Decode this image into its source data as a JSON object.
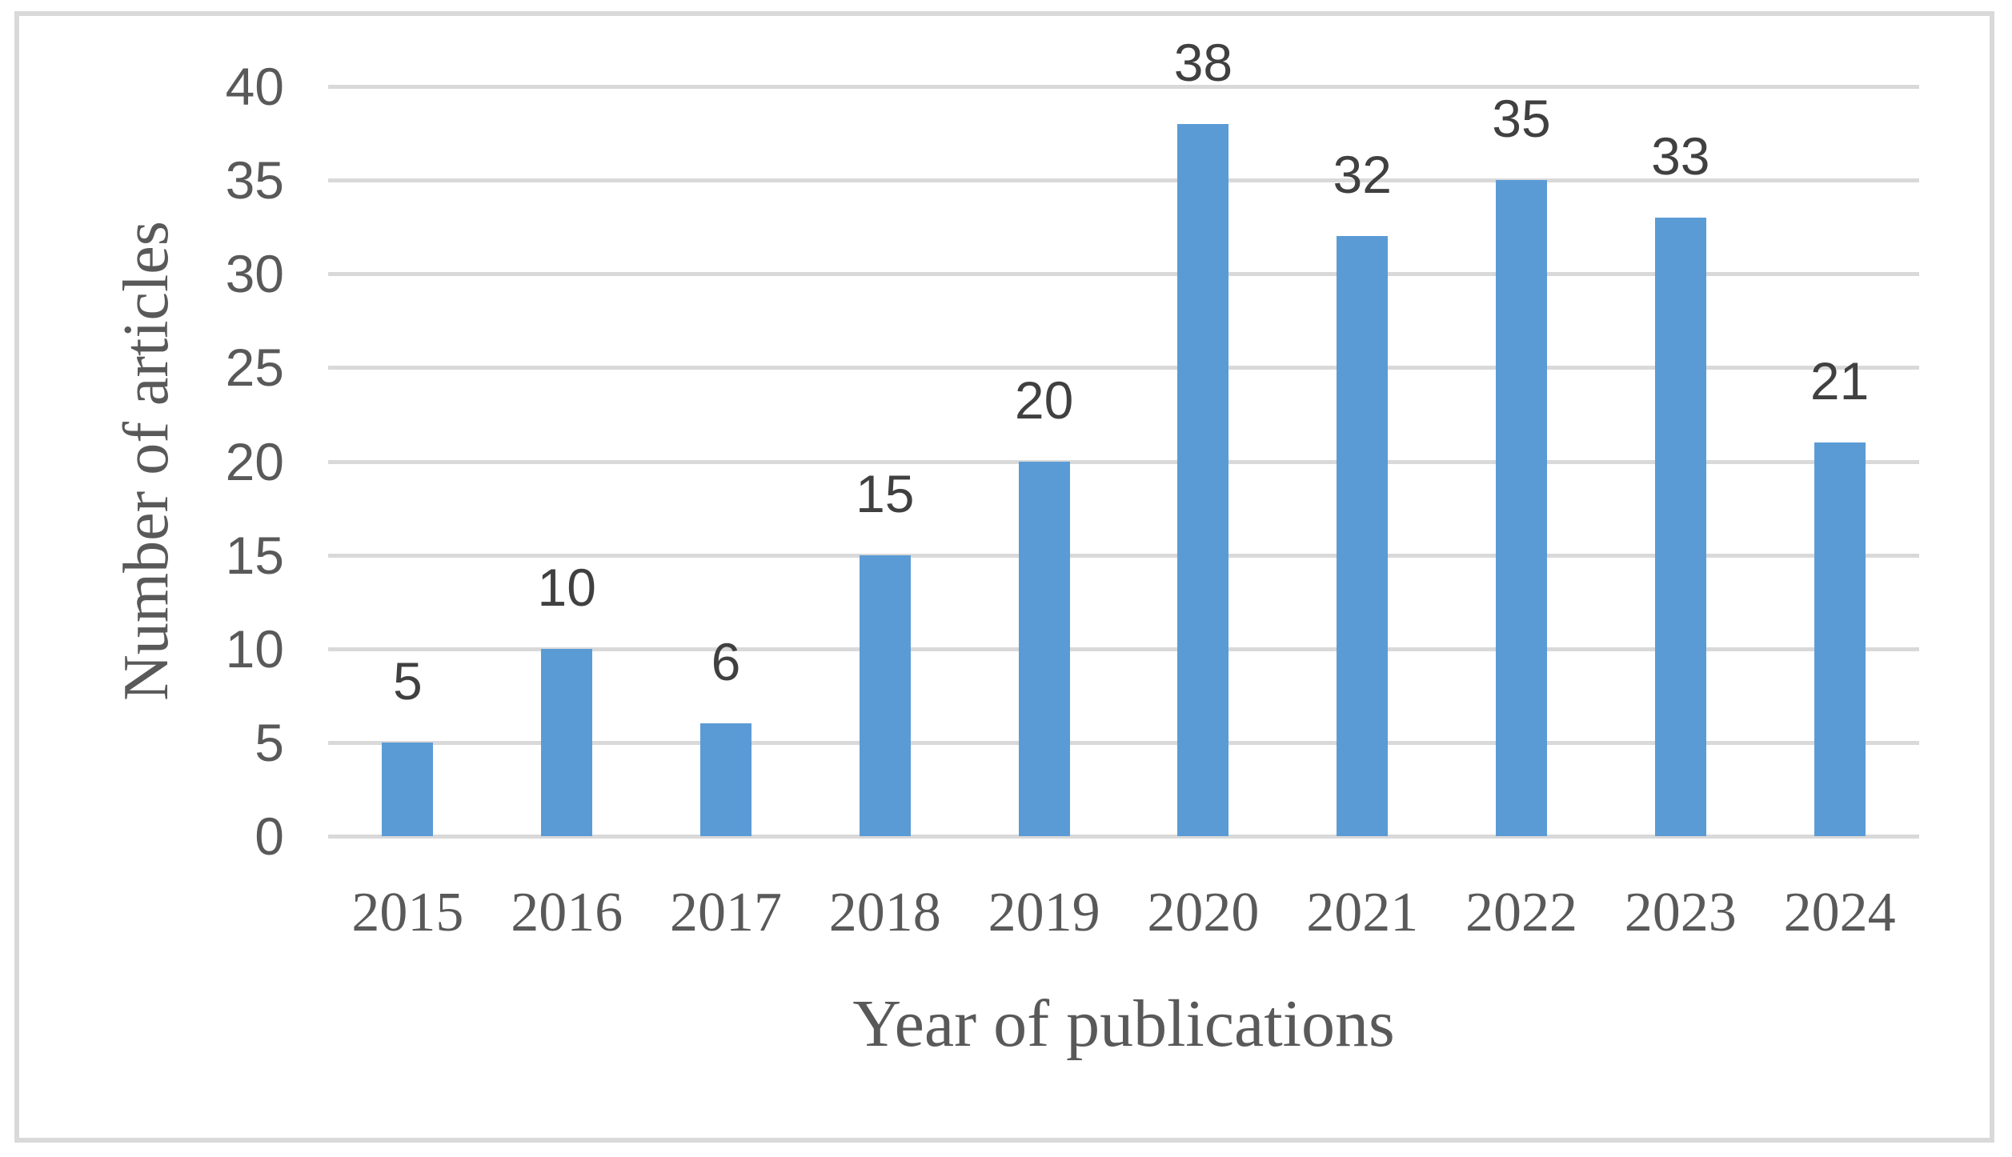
{
  "chart_data": {
    "type": "bar",
    "categories": [
      "2015",
      "2016",
      "2017",
      "2018",
      "2019",
      "2020",
      "2021",
      "2022",
      "2023",
      "2024"
    ],
    "values": [
      5,
      10,
      6,
      15,
      20,
      38,
      32,
      35,
      33,
      21
    ],
    "data_labels": [
      "5",
      "10",
      "6",
      "15",
      "20",
      "38",
      "32",
      "35",
      "33",
      "21"
    ],
    "title": "",
    "xlabel": "Year of publications",
    "ylabel": "Number of articles",
    "yticks": [
      0,
      5,
      10,
      15,
      20,
      25,
      30,
      35,
      40
    ],
    "ytick_labels": [
      "0",
      "5",
      "10",
      "15",
      "20",
      "25",
      "30",
      "35",
      "40"
    ],
    "ylim": [
      0,
      40
    ],
    "grid": "horizontal",
    "legend": "none",
    "colors": {
      "bar": "#5B9BD5",
      "gridline": "#D9D9D9",
      "figure_border": "#D9D9D9",
      "axis_text": "#595959",
      "data_label_text": "#404040"
    }
  }
}
